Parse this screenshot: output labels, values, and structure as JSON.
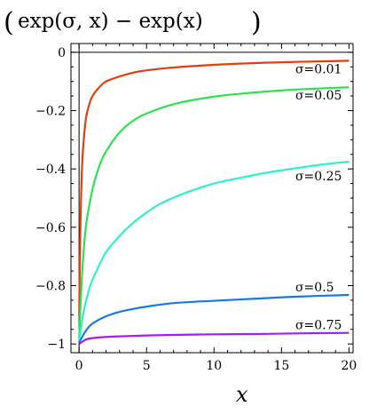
{
  "chart_data": {
    "type": "line",
    "title": "(exp(σ, x) − exp(x))",
    "title_parts": {
      "open": "(",
      "body": "exp(σ, x) − exp(x)",
      "close": ")"
    },
    "xlabel": "x",
    "ylabel": "",
    "xlim": [
      -0.6,
      20.3
    ],
    "ylim": [
      -1.03,
      0.03
    ],
    "x_ticks": [
      0,
      5,
      10,
      15,
      20
    ],
    "y_ticks": [
      0,
      -0.2,
      -0.4,
      -0.6,
      -0.8,
      -1
    ],
    "x_tick_labels": [
      "0",
      "5",
      "10",
      "15",
      "20"
    ],
    "y_tick_labels": [
      "0",
      "−0.2",
      "−0.4",
      "−0.6",
      "−0.8",
      "−1"
    ],
    "grid": false,
    "series": [
      {
        "name": "σ=0.01",
        "color": "#e04010",
        "x": [
          0.01,
          0.1,
          0.2,
          0.3,
          0.5,
          0.75,
          1,
          1.5,
          2,
          3,
          4,
          5,
          7,
          10,
          13,
          16,
          20
        ],
        "y": [
          -0.9,
          -0.6,
          -0.42,
          -0.33,
          -0.23,
          -0.18,
          -0.15,
          -0.12,
          -0.1,
          -0.083,
          -0.07,
          -0.062,
          -0.052,
          -0.043,
          -0.037,
          -0.033,
          -0.029
        ]
      },
      {
        "name": "σ=0.05",
        "color": "#30e050",
        "x": [
          0.01,
          0.2,
          0.5,
          1,
          1.5,
          2,
          3,
          4,
          5,
          7,
          10,
          13,
          16,
          20
        ],
        "y": [
          -0.98,
          -0.78,
          -0.6,
          -0.47,
          -0.39,
          -0.34,
          -0.275,
          -0.235,
          -0.21,
          -0.178,
          -0.152,
          -0.138,
          -0.128,
          -0.12
        ]
      },
      {
        "name": "σ=0.25",
        "color": "#30f0c8",
        "x": [
          0.01,
          0.3,
          0.7,
          1,
          1.5,
          2,
          3,
          4,
          5,
          6,
          8,
          10,
          12,
          14,
          16,
          18,
          20
        ],
        "y": [
          -0.99,
          -0.9,
          -0.82,
          -0.78,
          -0.73,
          -0.685,
          -0.63,
          -0.585,
          -0.55,
          -0.52,
          -0.48,
          -0.45,
          -0.43,
          -0.412,
          -0.398,
          -0.385,
          -0.375
        ]
      },
      {
        "name": "σ=0.5",
        "color": "#1a78e8",
        "x": [
          0.01,
          0.5,
          1,
          2,
          3,
          4,
          5,
          7,
          10,
          13,
          16,
          20
        ],
        "y": [
          -0.995,
          -0.955,
          -0.93,
          -0.905,
          -0.89,
          -0.88,
          -0.872,
          -0.86,
          -0.852,
          -0.845,
          -0.838,
          -0.832
        ]
      },
      {
        "name": "σ=0.75",
        "color": "#a020f0",
        "x": [
          0.01,
          0.5,
          1,
          2,
          3,
          5,
          7,
          10,
          13,
          16,
          20
        ],
        "y": [
          -1.0,
          -0.985,
          -0.98,
          -0.976,
          -0.974,
          -0.971,
          -0.969,
          -0.967,
          -0.966,
          -0.964,
          -0.962
        ]
      }
    ]
  }
}
